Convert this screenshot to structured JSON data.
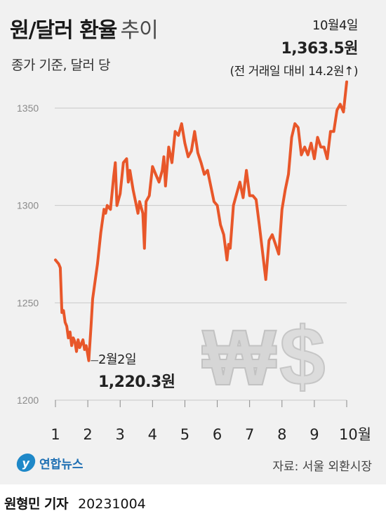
{
  "header": {
    "title_main": "원/달러 환율",
    "title_sub": "추이",
    "subtitle": "종가 기준, 달러 당"
  },
  "annotations": {
    "latest": {
      "date": "10월4일",
      "value": "1,363.5원",
      "change": "(전 거래일 대비 14.2원↑)"
    },
    "low": {
      "date": "2월2일",
      "value": "1,220.3원"
    }
  },
  "footer": {
    "logo_text": "연합뉴스",
    "logo_mark": "y",
    "source": "자료: 서울 외환시장",
    "author": "원형민 기자",
    "date": "20231004"
  },
  "colors": {
    "line": "#e8572a",
    "grid": "#c8c8c8",
    "background": "#f1f1f1",
    "watermark": "#dadada"
  },
  "decoration": {
    "icon": "won-dollar-watermark-icon"
  },
  "chart_data": {
    "type": "line",
    "title": "원/달러 환율 추이",
    "subtitle": "종가 기준, 달러 당",
    "xlabel": "",
    "ylabel": "",
    "ylim": [
      1195,
      1365
    ],
    "yticks": [
      1200,
      1250,
      1300,
      1350
    ],
    "xlim": [
      1,
      10
    ],
    "x_tick_labels": [
      "1",
      "2",
      "3",
      "4",
      "5",
      "6",
      "7",
      "8",
      "9",
      "10월"
    ],
    "x_tick_positions": [
      1,
      2,
      3,
      4,
      5,
      6,
      7,
      8,
      9,
      10
    ],
    "grid": true,
    "series": [
      {
        "x": [
          1.0,
          1.05,
          1.1,
          1.15,
          1.2,
          1.25,
          1.3,
          1.35,
          1.4,
          1.45,
          1.5,
          1.55,
          1.6,
          1.65,
          1.7,
          1.75,
          1.8,
          1.85,
          1.9,
          1.95,
          2.03,
          2.1,
          2.15,
          2.2,
          2.3,
          2.4,
          2.5,
          2.55,
          2.6,
          2.7,
          2.8,
          2.85,
          2.9,
          3.0,
          3.1,
          3.2,
          3.25,
          3.3,
          3.4,
          3.5,
          3.55,
          3.6,
          3.7,
          3.75,
          3.8,
          3.9,
          4.0,
          4.1,
          4.2,
          4.3,
          4.35,
          4.4,
          4.5,
          4.6,
          4.7,
          4.8,
          4.9,
          5.0,
          5.1,
          5.2,
          5.3,
          5.4,
          5.5,
          5.6,
          5.7,
          5.8,
          5.9,
          6.0,
          6.1,
          6.2,
          6.3,
          6.35,
          6.4,
          6.5,
          6.6,
          6.7,
          6.8,
          6.9,
          7.0,
          7.1,
          7.2,
          7.3,
          7.4,
          7.5,
          7.6,
          7.7,
          7.8,
          7.9,
          8.0,
          8.1,
          8.2,
          8.3,
          8.4,
          8.5,
          8.6,
          8.7,
          8.8,
          8.9,
          9.0,
          9.1,
          9.2,
          9.3,
          9.4,
          9.5,
          9.6,
          9.7,
          9.8,
          9.9,
          10.0
        ],
        "y": [
          1272,
          1271,
          1270,
          1268,
          1245,
          1246,
          1240,
          1238,
          1232,
          1235,
          1228,
          1232,
          1230,
          1225,
          1231,
          1227,
          1229,
          1231,
          1226,
          1228,
          1220.3,
          1238,
          1252,
          1258,
          1270,
          1286,
          1298,
          1296,
          1300,
          1298,
          1315,
          1322,
          1300,
          1306,
          1322,
          1324,
          1312,
          1318,
          1308,
          1300,
          1296,
          1302,
          1296,
          1278,
          1302,
          1305,
          1320,
          1316,
          1312,
          1318,
          1325,
          1310,
          1330,
          1322,
          1338,
          1336,
          1342,
          1332,
          1325,
          1328,
          1338,
          1327,
          1322,
          1316,
          1318,
          1310,
          1302,
          1300,
          1290,
          1285,
          1272,
          1280,
          1278,
          1300,
          1306,
          1312,
          1304,
          1318,
          1305,
          1305,
          1303,
          1290,
          1276,
          1262,
          1282,
          1285,
          1280,
          1275,
          1298,
          1308,
          1316,
          1335,
          1342,
          1340,
          1326,
          1330,
          1326,
          1332,
          1324,
          1335,
          1330,
          1330,
          1324,
          1338,
          1338,
          1349,
          1352,
          1348,
          1363.5
        ]
      }
    ]
  }
}
